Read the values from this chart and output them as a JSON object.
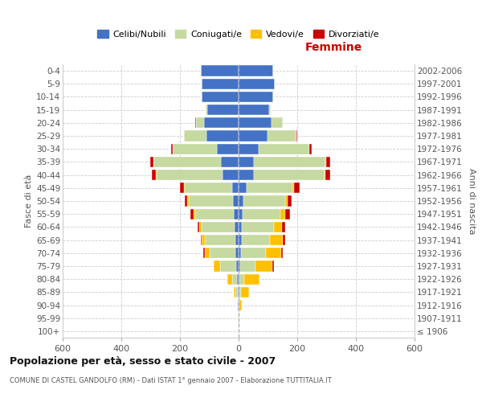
{
  "age_groups": [
    "100+",
    "95-99",
    "90-94",
    "85-89",
    "80-84",
    "75-79",
    "70-74",
    "65-69",
    "60-64",
    "55-59",
    "50-54",
    "45-49",
    "40-44",
    "35-39",
    "30-34",
    "25-29",
    "20-24",
    "15-19",
    "10-14",
    "5-9",
    "0-4"
  ],
  "birth_years": [
    "≤ 1906",
    "1907-1911",
    "1912-1916",
    "1917-1921",
    "1922-1926",
    "1927-1931",
    "1932-1936",
    "1937-1941",
    "1942-1946",
    "1947-1951",
    "1952-1956",
    "1957-1961",
    "1962-1966",
    "1967-1971",
    "1972-1976",
    "1977-1981",
    "1982-1986",
    "1987-1991",
    "1992-1996",
    "1997-2001",
    "2002-2006"
  ],
  "male_celibi": [
    1,
    1,
    2,
    3,
    5,
    8,
    10,
    12,
    14,
    16,
    18,
    22,
    55,
    60,
    75,
    110,
    118,
    108,
    125,
    125,
    128
  ],
  "male_coniugati": [
    0,
    0,
    3,
    7,
    18,
    55,
    90,
    102,
    112,
    132,
    152,
    162,
    225,
    230,
    150,
    75,
    28,
    4,
    1,
    0,
    0
  ],
  "male_vedovi": [
    0,
    0,
    1,
    6,
    16,
    22,
    16,
    12,
    8,
    6,
    4,
    3,
    2,
    1,
    0,
    0,
    0,
    0,
    0,
    0,
    0
  ],
  "male_divorziati": [
    0,
    0,
    0,
    0,
    0,
    1,
    5,
    4,
    7,
    11,
    9,
    14,
    13,
    9,
    4,
    2,
    1,
    0,
    0,
    0,
    0
  ],
  "female_celibi": [
    0,
    1,
    1,
    2,
    4,
    6,
    8,
    10,
    12,
    14,
    16,
    28,
    52,
    52,
    68,
    98,
    112,
    103,
    118,
    123,
    118
  ],
  "female_coniugati": [
    0,
    0,
    1,
    5,
    14,
    52,
    85,
    98,
    108,
    128,
    142,
    155,
    240,
    245,
    172,
    98,
    38,
    6,
    1,
    0,
    0
  ],
  "female_vedovi": [
    1,
    2,
    8,
    28,
    52,
    58,
    52,
    42,
    28,
    18,
    10,
    6,
    3,
    2,
    1,
    1,
    0,
    0,
    0,
    0,
    0
  ],
  "female_divorziati": [
    0,
    0,
    0,
    0,
    1,
    4,
    6,
    9,
    11,
    14,
    14,
    18,
    17,
    14,
    7,
    2,
    1,
    0,
    0,
    0,
    0
  ],
  "colors": {
    "celibi": "#4472c4",
    "coniugati": "#c5d9a0",
    "vedovi": "#ffc000",
    "divorziati": "#cc0000"
  },
  "xlim": 600,
  "title": "Popolazione per età, sesso e stato civile - 2007",
  "subtitle": "COMUNE DI CASTEL GANDOLFO (RM) - Dati ISTAT 1° gennaio 2007 - Elaborazione TUTTITALIA.IT",
  "label_femmine": "Femmine",
  "ylabel_left": "Fasce di età",
  "ylabel_right": "Anni di nascita",
  "bg_color": "#ffffff",
  "grid_color": "#cccccc",
  "legend_labels": [
    "Celibi/Nubili",
    "Coniugati/e",
    "Vedovi/e",
    "Divorziati/e"
  ]
}
